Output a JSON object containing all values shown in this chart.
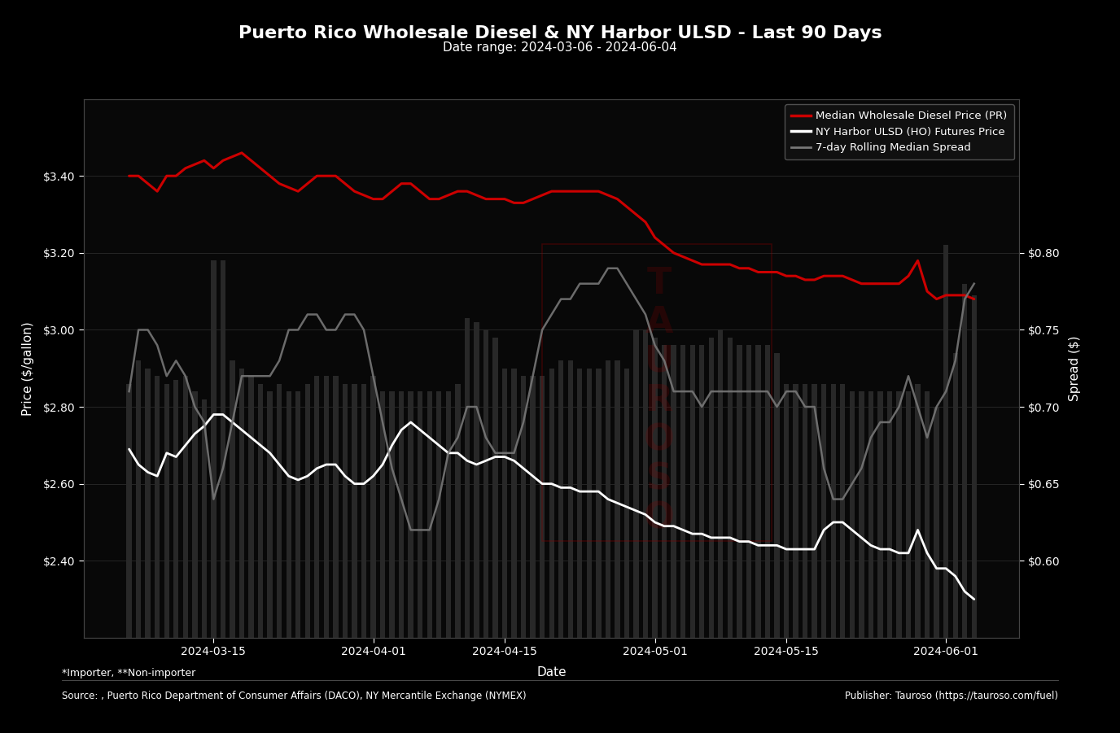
{
  "title": "Puerto Rico Wholesale Diesel & NY Harbor ULSD - Last 90 Days",
  "subtitle": "Date range: 2024-03-06 - 2024-06-04",
  "xlabel": "Date",
  "ylabel_left": "Price ($/gallon)",
  "ylabel_right": "Spread ($)",
  "legend_labels": [
    "Median Wholesale Diesel Price (PR)",
    "NY Harbor ULSD (HO) Futures Price",
    "7-day Rolling Median Spread"
  ],
  "background_color": "#000000",
  "plot_bg_color": "#080808",
  "red_line_color": "#cc0000",
  "white_line_color": "#ffffff",
  "gray_line_color": "#888888",
  "bar_color": "#2a2a2a",
  "footer_note1": "*Importer, **Non-importer",
  "footer_note2": "Source: , Puerto Rico Department of Consumer Affairs (DACO), NY Mercantile Exchange (NYMEX)",
  "footer_note3": "Publisher: Tauroso (https://tauroso.com/fuel)",
  "dates": [
    "2024-03-06",
    "2024-03-07",
    "2024-03-08",
    "2024-03-09",
    "2024-03-10",
    "2024-03-11",
    "2024-03-12",
    "2024-03-13",
    "2024-03-14",
    "2024-03-15",
    "2024-03-16",
    "2024-03-17",
    "2024-03-18",
    "2024-03-19",
    "2024-03-20",
    "2024-03-21",
    "2024-03-22",
    "2024-03-23",
    "2024-03-24",
    "2024-03-25",
    "2024-03-26",
    "2024-03-27",
    "2024-03-28",
    "2024-03-29",
    "2024-03-30",
    "2024-03-31",
    "2024-04-01",
    "2024-04-02",
    "2024-04-03",
    "2024-04-04",
    "2024-04-05",
    "2024-04-06",
    "2024-04-07",
    "2024-04-08",
    "2024-04-09",
    "2024-04-10",
    "2024-04-11",
    "2024-04-12",
    "2024-04-13",
    "2024-04-14",
    "2024-04-15",
    "2024-04-16",
    "2024-04-17",
    "2024-04-18",
    "2024-04-19",
    "2024-04-20",
    "2024-04-21",
    "2024-04-22",
    "2024-04-23",
    "2024-04-24",
    "2024-04-25",
    "2024-04-26",
    "2024-04-27",
    "2024-04-28",
    "2024-04-29",
    "2024-04-30",
    "2024-05-01",
    "2024-05-02",
    "2024-05-03",
    "2024-05-04",
    "2024-05-05",
    "2024-05-06",
    "2024-05-07",
    "2024-05-08",
    "2024-05-09",
    "2024-05-10",
    "2024-05-11",
    "2024-05-12",
    "2024-05-13",
    "2024-05-14",
    "2024-05-15",
    "2024-05-16",
    "2024-05-17",
    "2024-05-18",
    "2024-05-19",
    "2024-05-20",
    "2024-05-21",
    "2024-05-22",
    "2024-05-23",
    "2024-05-24",
    "2024-05-25",
    "2024-05-26",
    "2024-05-27",
    "2024-05-28",
    "2024-05-29",
    "2024-05-30",
    "2024-05-31",
    "2024-06-01",
    "2024-06-02",
    "2024-06-03",
    "2024-06-04"
  ],
  "red_price": [
    3.4,
    3.4,
    3.38,
    3.36,
    3.4,
    3.4,
    3.42,
    3.43,
    3.44,
    3.42,
    3.44,
    3.45,
    3.46,
    3.44,
    3.42,
    3.4,
    3.38,
    3.37,
    3.36,
    3.38,
    3.4,
    3.4,
    3.4,
    3.38,
    3.36,
    3.35,
    3.34,
    3.34,
    3.36,
    3.38,
    3.38,
    3.36,
    3.34,
    3.34,
    3.35,
    3.36,
    3.36,
    3.35,
    3.34,
    3.34,
    3.34,
    3.33,
    3.33,
    3.34,
    3.35,
    3.36,
    3.36,
    3.36,
    3.36,
    3.36,
    3.36,
    3.35,
    3.34,
    3.32,
    3.3,
    3.28,
    3.24,
    3.22,
    3.2,
    3.19,
    3.18,
    3.17,
    3.17,
    3.17,
    3.17,
    3.16,
    3.16,
    3.15,
    3.15,
    3.15,
    3.14,
    3.14,
    3.13,
    3.13,
    3.14,
    3.14,
    3.14,
    3.13,
    3.12,
    3.12,
    3.12,
    3.12,
    3.12,
    3.14,
    3.18,
    3.1,
    3.08,
    3.09,
    3.09,
    3.09,
    3.08
  ],
  "white_price": [
    2.69,
    2.65,
    2.63,
    2.62,
    2.68,
    2.67,
    2.7,
    2.73,
    2.75,
    2.78,
    2.78,
    2.76,
    2.74,
    2.72,
    2.7,
    2.68,
    2.65,
    2.62,
    2.61,
    2.62,
    2.64,
    2.65,
    2.65,
    2.62,
    2.6,
    2.6,
    2.62,
    2.65,
    2.7,
    2.74,
    2.76,
    2.74,
    2.72,
    2.7,
    2.68,
    2.68,
    2.66,
    2.65,
    2.66,
    2.67,
    2.67,
    2.66,
    2.64,
    2.62,
    2.6,
    2.6,
    2.59,
    2.59,
    2.58,
    2.58,
    2.58,
    2.56,
    2.55,
    2.54,
    2.53,
    2.52,
    2.5,
    2.49,
    2.49,
    2.48,
    2.47,
    2.47,
    2.46,
    2.46,
    2.46,
    2.45,
    2.45,
    2.44,
    2.44,
    2.44,
    2.43,
    2.43,
    2.43,
    2.43,
    2.48,
    2.5,
    2.5,
    2.48,
    2.46,
    2.44,
    2.43,
    2.43,
    2.42,
    2.42,
    2.48,
    2.42,
    2.38,
    2.38,
    2.36,
    2.32,
    2.3
  ],
  "spread_7day": [
    0.71,
    0.75,
    0.75,
    0.74,
    0.72,
    0.73,
    0.72,
    0.7,
    0.69,
    0.64,
    0.66,
    0.69,
    0.72,
    0.72,
    0.72,
    0.72,
    0.73,
    0.75,
    0.75,
    0.76,
    0.76,
    0.75,
    0.75,
    0.76,
    0.76,
    0.75,
    0.72,
    0.69,
    0.66,
    0.64,
    0.62,
    0.62,
    0.62,
    0.64,
    0.67,
    0.68,
    0.7,
    0.7,
    0.68,
    0.67,
    0.67,
    0.67,
    0.69,
    0.72,
    0.75,
    0.76,
    0.77,
    0.77,
    0.78,
    0.78,
    0.78,
    0.79,
    0.79,
    0.78,
    0.77,
    0.76,
    0.74,
    0.73,
    0.71,
    0.71,
    0.71,
    0.7,
    0.71,
    0.71,
    0.71,
    0.71,
    0.71,
    0.71,
    0.71,
    0.7,
    0.71,
    0.71,
    0.7,
    0.7,
    0.66,
    0.64,
    0.64,
    0.65,
    0.66,
    0.68,
    0.69,
    0.69,
    0.7,
    0.72,
    0.7,
    0.68,
    0.7,
    0.71,
    0.73,
    0.77,
    0.78
  ],
  "bar_heights_left": [
    2.86,
    2.92,
    2.9,
    2.88,
    2.86,
    2.87,
    2.88,
    2.84,
    2.82,
    3.18,
    3.18,
    2.92,
    2.9,
    2.88,
    2.86,
    2.84,
    2.86,
    2.84,
    2.84,
    2.86,
    2.88,
    2.88,
    2.88,
    2.86,
    2.86,
    2.86,
    2.88,
    2.84,
    2.84,
    2.84,
    2.84,
    2.84,
    2.84,
    2.84,
    2.84,
    2.86,
    3.03,
    3.02,
    3.0,
    2.98,
    2.9,
    2.9,
    2.88,
    2.88,
    2.88,
    2.9,
    2.92,
    2.92,
    2.9,
    2.9,
    2.9,
    2.92,
    2.92,
    2.9,
    3.0,
    3.0,
    2.98,
    2.96,
    2.96,
    2.96,
    2.96,
    2.96,
    2.98,
    3.0,
    2.98,
    2.96,
    2.96,
    2.96,
    2.96,
    2.94,
    2.86,
    2.86,
    2.86,
    2.86,
    2.86,
    2.86,
    2.86,
    2.84,
    2.84,
    2.84,
    2.84,
    2.84,
    2.84,
    2.84,
    2.86,
    2.84,
    2.8,
    3.22,
    2.94,
    3.12,
    3.09
  ],
  "ylim_left": [
    2.2,
    3.6
  ],
  "ylim_right": [
    0.55,
    0.9
  ],
  "yticks_left": [
    2.4,
    2.6,
    2.8,
    3.0,
    3.2,
    3.4
  ],
  "yticks_right": [
    0.6,
    0.65,
    0.7,
    0.75,
    0.8
  ],
  "title_fontsize": 16,
  "subtitle_fontsize": 11,
  "tick_fontsize": 10,
  "label_fontsize": 11
}
